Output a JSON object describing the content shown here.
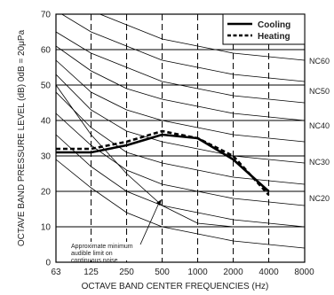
{
  "chart_data": {
    "type": "line",
    "x_tick_labels": [
      "63",
      "125",
      "250",
      "500",
      "1000",
      "2000",
      "4000",
      "8000"
    ],
    "xlabel": "OCTAVE  BAND  CENTER  FREQUENCIES (Hz)",
    "ylabel": "OCTAVE  BAND  PRESSURE  LEVEL (dB) 0dB = 20μPa",
    "y_ticks": [
      0,
      10,
      20,
      30,
      40,
      50,
      60,
      70
    ],
    "ylim": [
      0,
      70
    ],
    "x_scale": "log2 (octave bands)",
    "grid": "dashed vertical at band centers, solid horizontal every 10 dB",
    "legend": {
      "position": "top-right",
      "entries": [
        "Cooling",
        "Heating"
      ]
    },
    "nc_labels": [
      "NC60",
      "NC50",
      "NC40",
      "NC30",
      "NC20"
    ],
    "annotation": [
      "Approximate minimum",
      "audible limit on",
      "continuous noise"
    ],
    "series": [
      {
        "name": "Cooling",
        "style": "solid",
        "x": [
          63,
          125,
          250,
          500,
          1000,
          2000,
          4000
        ],
        "y": [
          31,
          31,
          33,
          36,
          35,
          29,
          20
        ]
      },
      {
        "name": "Heating",
        "style": "dashed",
        "x": [
          63,
          125,
          250,
          500,
          1000,
          2000,
          4000
        ],
        "y": [
          32,
          32,
          34,
          37,
          35,
          30,
          19
        ]
      }
    ],
    "nc_curves": [
      {
        "x": [
          63,
          125,
          250,
          500,
          1000,
          2000,
          4000,
          8000
        ],
        "y": [
          77,
          71,
          67,
          63,
          61,
          59,
          58,
          57
        ]
      },
      {
        "x": [
          63,
          125,
          250,
          500,
          1000,
          2000,
          4000,
          8000
        ],
        "y": [
          71,
          65,
          61,
          57,
          55,
          53,
          52,
          51
        ]
      },
      {
        "x": [
          63,
          125,
          250,
          500,
          1000,
          2000,
          4000,
          8000
        ],
        "y": [
          65,
          59,
          55,
          51,
          49,
          47,
          46,
          45
        ]
      },
      {
        "x": [
          63,
          125,
          250,
          500,
          1000,
          2000,
          4000,
          8000
        ],
        "y": [
          61,
          54,
          49,
          46,
          44,
          42,
          41,
          40
        ]
      },
      {
        "x": [
          63,
          125,
          250,
          500,
          1000,
          2000,
          4000,
          8000
        ],
        "y": [
          57,
          48,
          43,
          40,
          38,
          36,
          35,
          34
        ]
      },
      {
        "x": [
          63,
          125,
          250,
          500,
          1000,
          2000,
          4000,
          8000
        ],
        "y": [
          53,
          43,
          37,
          34,
          32,
          30,
          29,
          28
        ]
      },
      {
        "x": [
          63,
          125,
          250,
          500,
          1000,
          2000,
          4000,
          8000
        ],
        "y": [
          48,
          38,
          31,
          28,
          26,
          24,
          23,
          22
        ]
      },
      {
        "x": [
          63,
          125,
          250,
          500,
          1000,
          2000,
          4000,
          8000
        ],
        "y": [
          42,
          33,
          26,
          22,
          20,
          18,
          17,
          16
        ]
      },
      {
        "x": [
          63,
          125,
          250,
          500,
          1000,
          2000,
          4000,
          8000
        ],
        "y": [
          36,
          27,
          20,
          16,
          14,
          12,
          11,
          10
        ]
      },
      {
        "x": [
          63,
          125,
          250,
          500,
          1000,
          2000,
          4000,
          8000
        ],
        "y": [
          29,
          21,
          14,
          10,
          8,
          6,
          5,
          4
        ]
      }
    ],
    "audibility_curve": {
      "x": [
        63,
        125,
        250,
        500,
        1000,
        2000,
        4000,
        8000
      ],
      "y": [
        50,
        36,
        25,
        16,
        11,
        10,
        10,
        10
      ]
    }
  }
}
